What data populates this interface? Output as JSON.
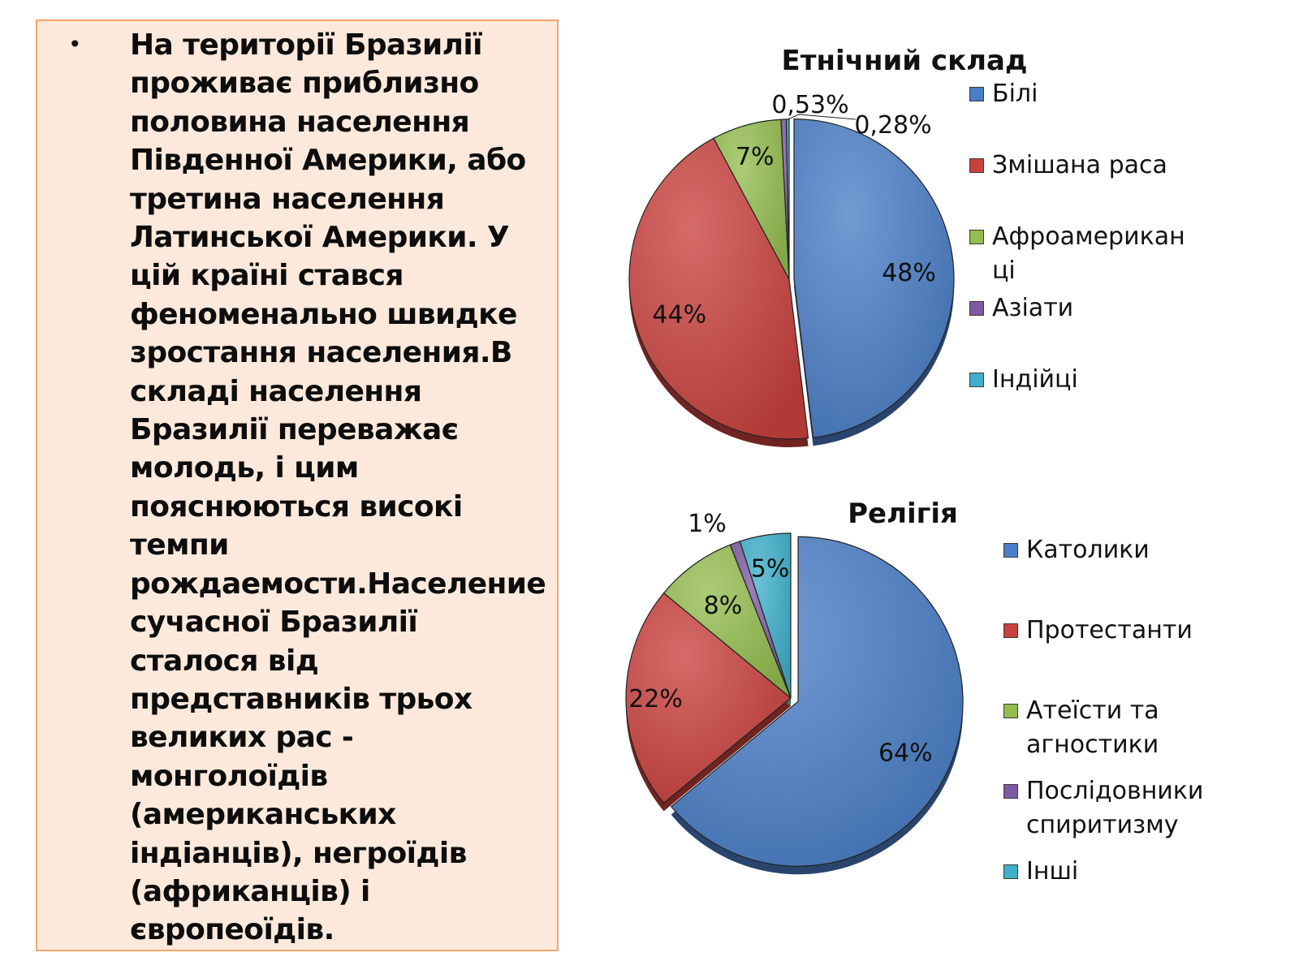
{
  "text_panel": {
    "bullet": "•",
    "body": "На території Бразилії проживає приблизно половина населення Південної Америки, або третина населення Латинської Америки. У цій країні стався феноменально швидке зростання населения.В складі населення Бразилії переважає молодь, і цим пояснюються високі темпи рождаемости.Население сучасної Бразилії сталося від представників трьох великих рас - монголоїдів (американських індіанців), негроїдів (африканців) і європеоїдів.",
    "background": "#fde9dc",
    "border": "#f5a46a"
  },
  "chart_data": [
    {
      "type": "pie",
      "title": "Етнічний склад",
      "categories": [
        "Білі",
        "Змішана раса",
        "Афроамерикан ці",
        "Азіати",
        "Індійці"
      ],
      "values": [
        48,
        44,
        7,
        0.53,
        0.28
      ],
      "data_labels": [
        "48%",
        "44%",
        "7%",
        "0,53%",
        "0,28%"
      ],
      "colors": [
        "#4a7ec6",
        "#c9413d",
        "#94bd4f",
        "#7d5aa3",
        "#3fb0cb"
      ],
      "legend_position": "right"
    },
    {
      "type": "pie",
      "title": "Релігія",
      "categories": [
        "Католики",
        "Протестанти",
        "Атеїсти та агностики",
        "Послідовники спиритизму",
        "Інші"
      ],
      "values": [
        64,
        22,
        8,
        1,
        5
      ],
      "data_labels": [
        "64%",
        "22%",
        "8%",
        "1%",
        "5%"
      ],
      "colors": [
        "#4a7ec6",
        "#c9413d",
        "#94bd4f",
        "#7d5aa3",
        "#3fb0cb"
      ],
      "legend_position": "right"
    }
  ]
}
